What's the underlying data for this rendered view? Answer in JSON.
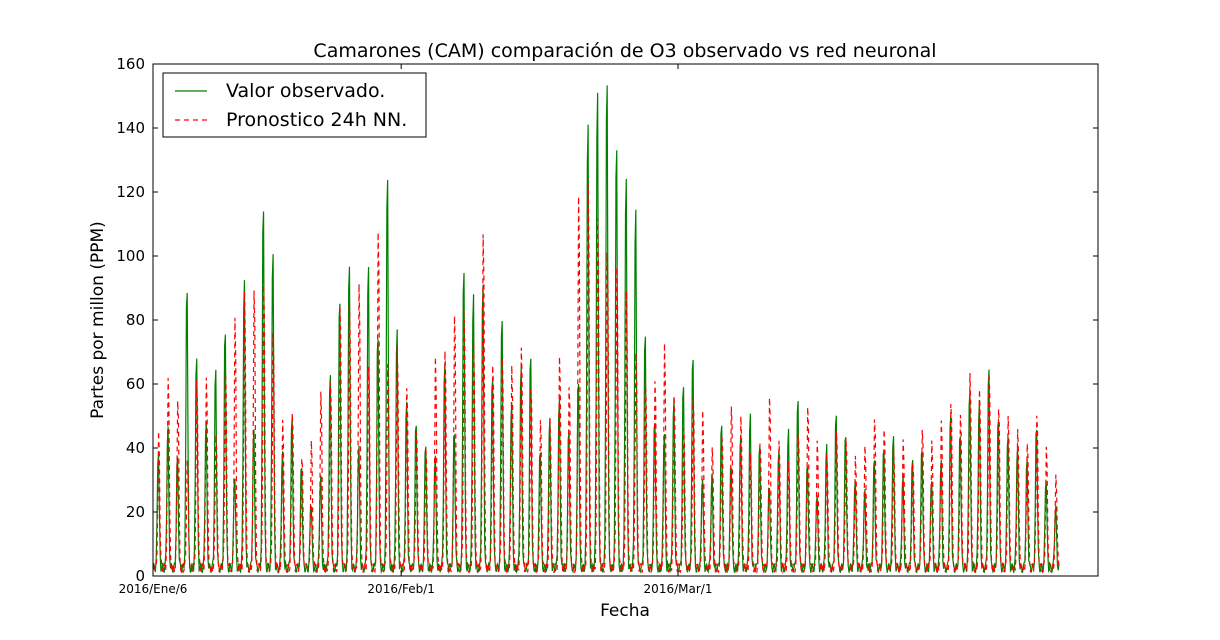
{
  "chart_data": {
    "type": "line",
    "title": "Camarones (CAM) comparación de O3 observado vs red neuronal",
    "xlabel": "Fecha",
    "ylabel": "Partes por millon (PPM)",
    "ylim": [
      0,
      160
    ],
    "yticks": [
      0,
      20,
      40,
      60,
      80,
      100,
      120,
      140,
      160
    ],
    "x_tick_labels": [
      "2016/Ene/6",
      "2016/Feb/1",
      "2016/Mar/1"
    ],
    "x_tick_dates": [
      "2016-01-06",
      "2016-02-01",
      "2016-03-01"
    ],
    "xlim": [
      "2016-01-06",
      "2016-04-14"
    ],
    "legend_position": "top-left",
    "grid": false,
    "x_dates": [
      "2016-01-06",
      "2016-01-07",
      "2016-01-08",
      "2016-01-09",
      "2016-01-10",
      "2016-01-11",
      "2016-01-12",
      "2016-01-13",
      "2016-01-14",
      "2016-01-15",
      "2016-01-16",
      "2016-01-17",
      "2016-01-18",
      "2016-01-19",
      "2016-01-20",
      "2016-01-21",
      "2016-01-22",
      "2016-01-23",
      "2016-01-24",
      "2016-01-25",
      "2016-01-26",
      "2016-01-27",
      "2016-01-28",
      "2016-01-29",
      "2016-01-30",
      "2016-01-31",
      "2016-02-01",
      "2016-02-02",
      "2016-02-03",
      "2016-02-04",
      "2016-02-05",
      "2016-02-06",
      "2016-02-07",
      "2016-02-08",
      "2016-02-09",
      "2016-02-10",
      "2016-02-11",
      "2016-02-12",
      "2016-02-13",
      "2016-02-14",
      "2016-02-15",
      "2016-02-16",
      "2016-02-17",
      "2016-02-18",
      "2016-02-19",
      "2016-02-20",
      "2016-02-21",
      "2016-02-22",
      "2016-02-23",
      "2016-02-24",
      "2016-02-25",
      "2016-02-26",
      "2016-02-27",
      "2016-02-28",
      "2016-02-29",
      "2016-03-01",
      "2016-03-02",
      "2016-03-03",
      "2016-03-04",
      "2016-03-05",
      "2016-03-06",
      "2016-03-07",
      "2016-03-08",
      "2016-03-09",
      "2016-03-10",
      "2016-03-11",
      "2016-03-12",
      "2016-03-13",
      "2016-03-14",
      "2016-03-15",
      "2016-03-16",
      "2016-03-17",
      "2016-03-18",
      "2016-03-19",
      "2016-03-20",
      "2016-03-21",
      "2016-03-22",
      "2016-03-23",
      "2016-03-24",
      "2016-03-25",
      "2016-03-26",
      "2016-03-27",
      "2016-03-28",
      "2016-03-29",
      "2016-03-30",
      "2016-03-31",
      "2016-04-01",
      "2016-04-02",
      "2016-04-03",
      "2016-04-04",
      "2016-04-05",
      "2016-04-06",
      "2016-04-07",
      "2016-04-08",
      "2016-04-09"
    ],
    "series": [
      {
        "name": "Valor observado.",
        "color": "#008000",
        "style": "solid",
        "peaks": [
          39,
          46,
          36,
          93,
          71,
          48,
          65,
          79,
          31,
          95,
          45,
          120,
          106,
          38,
          49,
          34,
          22,
          30,
          63,
          89,
          102,
          40,
          99,
          77,
          131,
          79,
          54,
          48,
          42,
          37,
          67,
          45,
          100,
          91,
          93,
          63,
          84,
          55,
          66,
          70,
          40,
          50,
          55,
          45,
          63,
          148,
          157,
          161,
          141,
          130,
          118,
          77,
          50,
          45,
          55,
          60,
          71,
          30,
          30,
          47,
          35,
          45,
          50,
          40,
          28,
          40,
          45,
          55,
          35,
          25,
          40,
          50,
          45,
          30,
          25,
          35,
          40,
          45,
          30,
          35,
          40,
          30,
          35,
          50,
          45,
          60,
          55,
          65,
          50,
          45,
          40,
          35,
          47,
          30,
          20
        ]
      },
      {
        "name": "Pronostico 24h NN.",
        "color": "#ff0000",
        "style": "dashed",
        "peaks": [
          43,
          62,
          56,
          35,
          60,
          62,
          45,
          65,
          80,
          90,
          92,
          94,
          75,
          48,
          52,
          36,
          40,
          57,
          62,
          86,
          85,
          92,
          67,
          110,
          65,
          72,
          60,
          45,
          38,
          68,
          72,
          83,
          82,
          74,
          110,
          67,
          67,
          65,
          73,
          60,
          47,
          48,
          70,
          60,
          120,
          124,
          115,
          104,
          97,
          89,
          71,
          62,
          60,
          72,
          57,
          47,
          55,
          50,
          40,
          45,
          52,
          48,
          38,
          42,
          55,
          40,
          35,
          45,
          52,
          40,
          38,
          46,
          42,
          35,
          40,
          50,
          45,
          38,
          42,
          36,
          45,
          40,
          48,
          55,
          50,
          62,
          58,
          65,
          52,
          48,
          45,
          42,
          50,
          38,
          30
        ]
      }
    ]
  }
}
